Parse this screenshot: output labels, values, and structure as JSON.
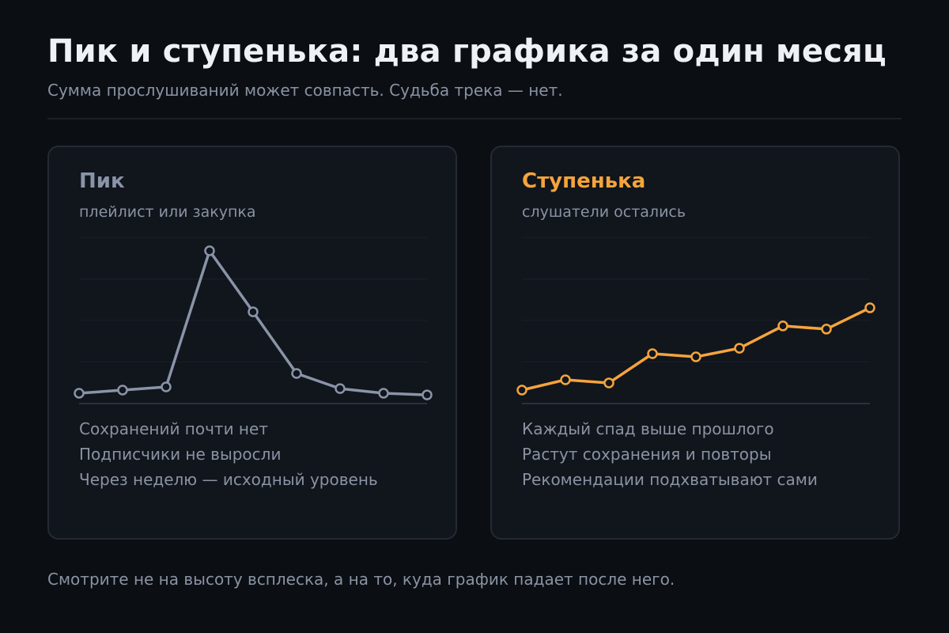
{
  "header": {
    "title": "Пик и ступенька: два графика за один месяц",
    "subtitle": "Сумма прослушиваний может совпасть. Судьба трека — нет."
  },
  "cards": [
    {
      "title": "Пик",
      "subtitle": "плейлист или закупка",
      "accent": "#8a94a8",
      "notes": [
        "Сохранений почти нет",
        "Подписчики не выросли",
        "Через неделю — исходный уровень"
      ]
    },
    {
      "title": "Ступенька",
      "subtitle": "слушатели остались",
      "accent": "#f5a43c",
      "notes": [
        "Каждый спад выше прошлого",
        "Растут сохранения и повторы",
        "Рекомендации подхватывают сами"
      ]
    }
  ],
  "footer": "Смотрите не на высоту всплеска, а на то, куда график падает после него.",
  "chart_data": [
    {
      "type": "line",
      "x": [
        1,
        2,
        3,
        4,
        5,
        6,
        7,
        8,
        9
      ],
      "ylim": [
        0,
        100
      ],
      "grid": true,
      "series": [
        {
          "values": [
            6.2,
            8.1,
            10.0,
            91.9,
            55.2,
            18.1,
            9.0,
            6.2,
            5.2
          ]
        }
      ]
    },
    {
      "type": "line",
      "x": [
        1,
        2,
        3,
        4,
        5,
        6,
        7,
        8,
        9
      ],
      "ylim": [
        0,
        100
      ],
      "grid": true,
      "series": [
        {
          "values": [
            8.1,
            14.3,
            12.4,
            30.0,
            28.1,
            33.3,
            46.7,
            44.8,
            57.6
          ]
        }
      ]
    }
  ]
}
